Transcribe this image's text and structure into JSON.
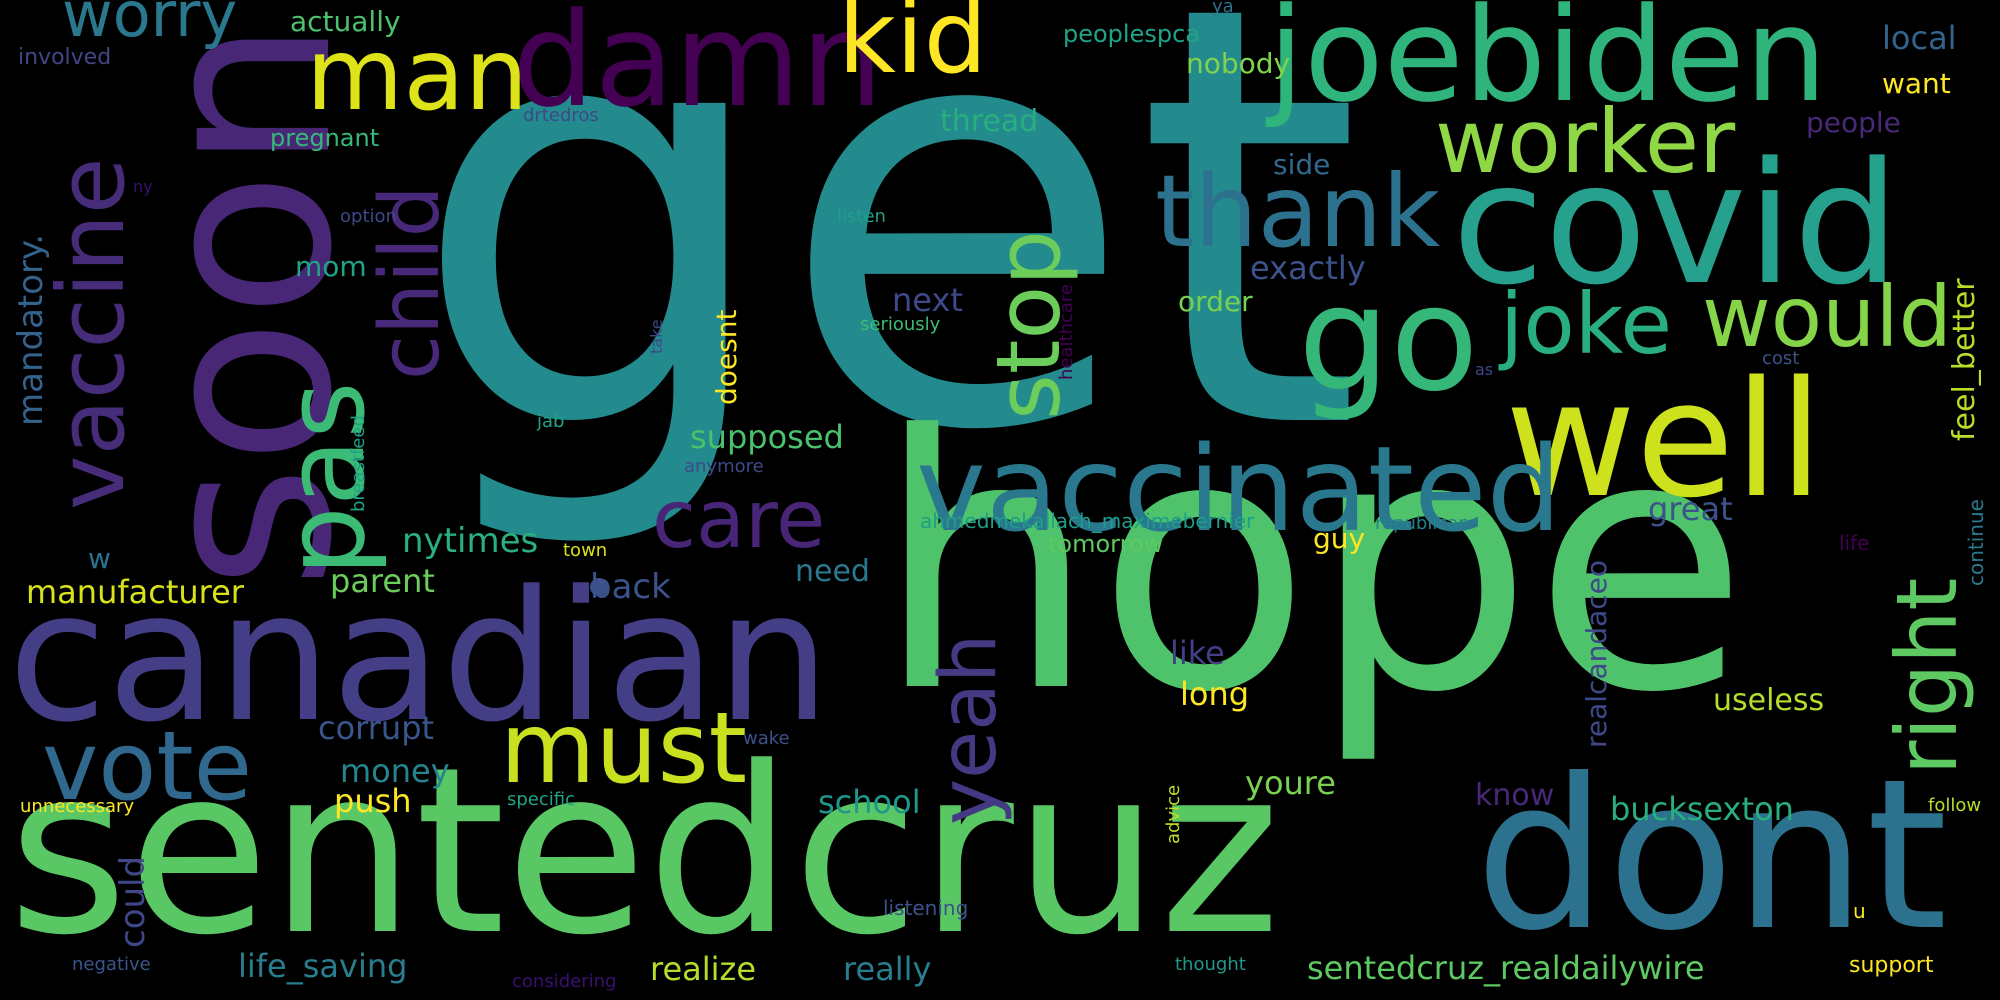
{
  "cloud": {
    "words": [
      {
        "text": "get",
        "color": "#238a8d",
        "vertical": false
      },
      {
        "text": "hope",
        "color": "#4ec36b",
        "vertical": false
      },
      {
        "text": "sentedcruz",
        "color": "#59c864",
        "vertical": false
      },
      {
        "text": "canadian",
        "color": "#433e85",
        "vertical": false
      },
      {
        "text": "soon",
        "color": "#482777",
        "vertical": true
      },
      {
        "text": "dont",
        "color": "#2c728e",
        "vertical": false
      },
      {
        "text": "damn",
        "color": "#440154",
        "vertical": false
      },
      {
        "text": "joebiden",
        "color": "#2fb47c",
        "vertical": false
      },
      {
        "text": "covid",
        "color": "#25a18e",
        "vertical": false
      },
      {
        "text": "well",
        "color": "#cde11d",
        "vertical": false
      },
      {
        "text": "go",
        "color": "#35b779",
        "vertical": false
      },
      {
        "text": "vaccinated",
        "color": "#2a788e",
        "vertical": false
      },
      {
        "text": "vaccine",
        "color": "#472c7a",
        "vertical": true
      },
      {
        "text": "pas",
        "color": "#3bbb75",
        "vertical": true
      },
      {
        "text": "man",
        "color": "#dde318",
        "vertical": false
      },
      {
        "text": "kid",
        "color": "#fde725",
        "vertical": false
      },
      {
        "text": "thank",
        "color": "#2c728e",
        "vertical": false
      },
      {
        "text": "worker",
        "color": "#8fd744",
        "vertical": false
      },
      {
        "text": "must",
        "color": "#c8e020",
        "vertical": false
      },
      {
        "text": "vote",
        "color": "#31688e",
        "vertical": false
      },
      {
        "text": "would",
        "color": "#86d549",
        "vertical": false
      },
      {
        "text": "joke",
        "color": "#29af7f",
        "vertical": false
      },
      {
        "text": "stop",
        "color": "#6ccd5a",
        "vertical": true
      },
      {
        "text": "child",
        "color": "#482878",
        "vertical": true
      },
      {
        "text": "right",
        "color": "#5ec962",
        "vertical": true
      },
      {
        "text": "care",
        "color": "#482576",
        "vertical": false
      },
      {
        "text": "yeah",
        "color": "#443983",
        "vertical": true
      },
      {
        "text": "worry",
        "color": "#2a788e",
        "vertical": false
      },
      {
        "text": "mandatory.",
        "color": "#33638d",
        "vertical": true
      },
      {
        "text": "manufacturer",
        "color": "#d8e219",
        "vertical": false
      },
      {
        "text": "supposed",
        "color": "#4ac16d",
        "vertical": false
      },
      {
        "text": "nytimes",
        "color": "#2ab07f",
        "vertical": false
      },
      {
        "text": "back",
        "color": "#3b528b",
        "vertical": false
      },
      {
        "text": "parent",
        "color": "#6ccd5a",
        "vertical": false
      },
      {
        "text": "corrupt",
        "color": "#39568c",
        "vertical": false
      },
      {
        "text": "money",
        "color": "#25858e",
        "vertical": false
      },
      {
        "text": "push",
        "color": "#fde725",
        "vertical": false
      },
      {
        "text": "could",
        "color": "#3f4788",
        "vertical": true
      },
      {
        "text": "life_saving",
        "color": "#287d8e",
        "vertical": false
      },
      {
        "text": "realize",
        "color": "#b5de2b",
        "vertical": false
      },
      {
        "text": "really",
        "color": "#287d8e",
        "vertical": false
      },
      {
        "text": "school",
        "color": "#1f988b",
        "vertical": false
      },
      {
        "text": "doesnt",
        "color": "#fde725",
        "vertical": true
      },
      {
        "text": "next",
        "color": "#3e4989",
        "vertical": false
      },
      {
        "text": "mom",
        "color": "#20a386",
        "vertical": false
      },
      {
        "text": "thread",
        "color": "#29af7f",
        "vertical": false
      },
      {
        "text": "nobody",
        "color": "#81d34d",
        "vertical": false
      },
      {
        "text": "side",
        "color": "#31688e",
        "vertical": false
      },
      {
        "text": "exactly",
        "color": "#3b528b",
        "vertical": false
      },
      {
        "text": "order",
        "color": "#7ad151",
        "vertical": false
      },
      {
        "text": "actually",
        "color": "#4ac16d",
        "vertical": false
      },
      {
        "text": "involved",
        "color": "#404688",
        "vertical": false
      },
      {
        "text": "pregnant",
        "color": "#37b878",
        "vertical": false
      },
      {
        "text": "drtedros",
        "color": "#3e4989",
        "vertical": false
      },
      {
        "text": "peoplespca",
        "color": "#20a386",
        "vertical": false
      },
      {
        "text": "ya",
        "color": "#2c728e",
        "vertical": false
      },
      {
        "text": "local",
        "color": "#33638d",
        "vertical": false
      },
      {
        "text": "want",
        "color": "#fde725",
        "vertical": false
      },
      {
        "text": "people",
        "color": "#482878",
        "vertical": false
      },
      {
        "text": "feel_better",
        "color": "#b8de29",
        "vertical": true
      },
      {
        "text": "option",
        "color": "#3e4989",
        "vertical": false
      },
      {
        "text": "ny",
        "color": "#3b0f70",
        "vertical": false
      },
      {
        "text": "listen",
        "color": "#1f9e89",
        "vertical": false
      },
      {
        "text": "seriously",
        "color": "#3dbc74",
        "vertical": false
      },
      {
        "text": "take",
        "color": "#3e4989",
        "vertical": true
      },
      {
        "text": "healthcare",
        "color": "#440154",
        "vertical": true
      },
      {
        "text": "as",
        "color": "#3e4989",
        "vertical": false
      },
      {
        "text": "cost",
        "color": "#3b528b",
        "vertical": false
      },
      {
        "text": "jab",
        "color": "#20a386",
        "vertical": false
      },
      {
        "text": "breastfeed",
        "color": "#1fa088",
        "vertical": true
      },
      {
        "text": "anymore",
        "color": "#3e4989",
        "vertical": false
      },
      {
        "text": "ahmedmekallach_maximebernier",
        "color": "#1f9e89",
        "vertical": false
      },
      {
        "text": "republican",
        "color": "#26828e",
        "vertical": false
      },
      {
        "text": "realcandaceo",
        "color": "#3e4989",
        "vertical": true
      },
      {
        "text": "great",
        "color": "#3b528b",
        "vertical": false
      },
      {
        "text": "tomorrow",
        "color": "#5ec962",
        "vertical": false
      },
      {
        "text": "guy",
        "color": "#fde725",
        "vertical": false
      },
      {
        "text": "town",
        "color": "#d8e219",
        "vertical": false
      },
      {
        "text": "life",
        "color": "#440154",
        "vertical": false
      },
      {
        "text": "continue",
        "color": "#2a788e",
        "vertical": true
      },
      {
        "text": "need",
        "color": "#2a788e",
        "vertical": false
      },
      {
        "text": "w",
        "color": "#2c728e",
        "vertical": false
      },
      {
        "text": "like",
        "color": "#433e85",
        "vertical": false
      },
      {
        "text": "long",
        "color": "#fde725",
        "vertical": false
      },
      {
        "text": "useless",
        "color": "#b5de2b",
        "vertical": false
      },
      {
        "text": "wake",
        "color": "#3b528b",
        "vertical": false
      },
      {
        "text": "youre",
        "color": "#7ad151",
        "vertical": false
      },
      {
        "text": "unnecessary",
        "color": "#fde725",
        "vertical": false
      },
      {
        "text": "specific",
        "color": "#20a386",
        "vertical": false
      },
      {
        "text": "advice",
        "color": "#bddf26",
        "vertical": true
      },
      {
        "text": "know",
        "color": "#482878",
        "vertical": false
      },
      {
        "text": "bucksexton",
        "color": "#29af7f",
        "vertical": false
      },
      {
        "text": "follow",
        "color": "#b8de29",
        "vertical": false
      },
      {
        "text": "listening",
        "color": "#3b528b",
        "vertical": false
      },
      {
        "text": "u",
        "color": "#fde725",
        "vertical": false
      },
      {
        "text": "negative",
        "color": "#39568c",
        "vertical": false
      },
      {
        "text": "considering",
        "color": "#3b0f70",
        "vertical": false
      },
      {
        "text": "thought",
        "color": "#1f988b",
        "vertical": false
      },
      {
        "text": "sentedcruz_realdailywire",
        "color": "#5ec962",
        "vertical": false
      },
      {
        "text": "support",
        "color": "#fde725",
        "vertical": false
      }
    ]
  }
}
